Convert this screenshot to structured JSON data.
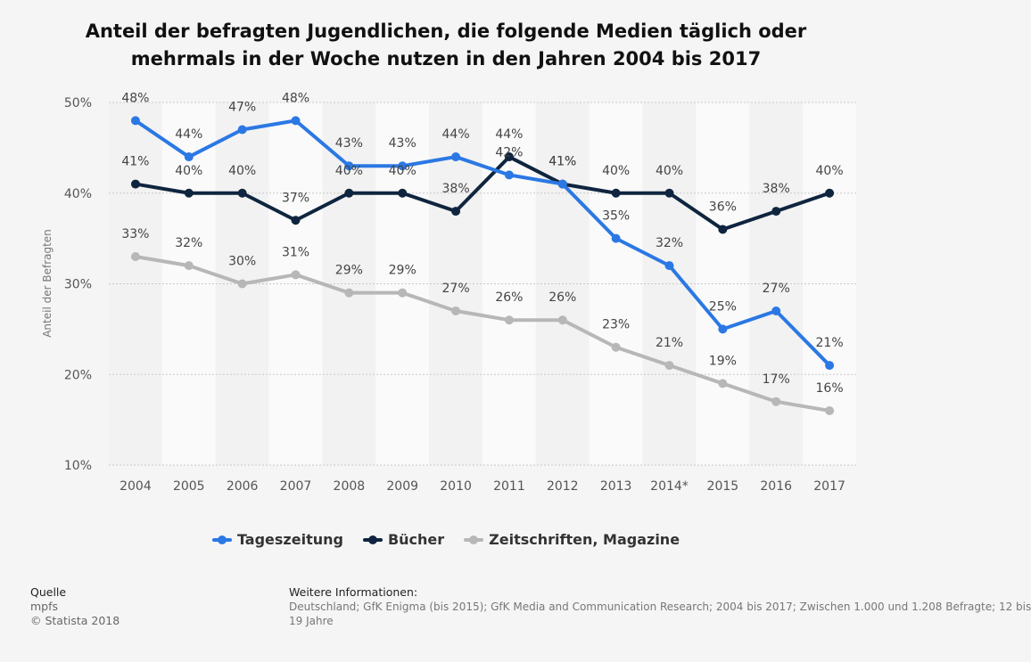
{
  "title_line1": "Anteil der befragten Jugendlichen, die folgende Medien täglich oder",
  "title_line2": "mehrmals in der Woche nutzen in den Jahren 2004 bis 2017",
  "chart_data": {
    "type": "line",
    "title": "Anteil der befragten Jugendlichen, die folgende Medien täglich oder mehrmals in der Woche nutzen in den Jahren 2004 bis 2017",
    "xlabel": "",
    "ylabel": "Anteil der Befragten",
    "ylim": [
      10,
      50
    ],
    "yticks": [
      10,
      20,
      30,
      40,
      50
    ],
    "ytick_labels": [
      "10%",
      "20%",
      "30%",
      "40%",
      "50%"
    ],
    "categories": [
      "2004",
      "2005",
      "2006",
      "2007",
      "2008",
      "2009",
      "2010",
      "2011",
      "2012",
      "2013",
      "2014*",
      "2015",
      "2016",
      "2017"
    ],
    "grid": true,
    "legend_position": "bottom",
    "series": [
      {
        "name": "Tageszeitung",
        "color": "#2b78e4",
        "values": [
          48,
          44,
          47,
          48,
          43,
          43,
          44,
          42,
          41,
          35,
          32,
          25,
          27,
          21
        ]
      },
      {
        "name": "Bücher",
        "color": "#0f253f",
        "values": [
          41,
          40,
          40,
          37,
          40,
          40,
          38,
          44,
          41,
          40,
          40,
          36,
          38,
          40
        ]
      },
      {
        "name": "Zeitschriften, Magazine",
        "color": "#b7b7b7",
        "values": [
          33,
          32,
          30,
          31,
          29,
          29,
          27,
          26,
          26,
          23,
          21,
          19,
          17,
          16
        ]
      }
    ]
  },
  "footer": {
    "source_heading": "Quelle",
    "source_name": "mpfs",
    "copyright": "© Statista 2018",
    "info_heading": "Weitere Informationen:",
    "info_line1": "Deutschland; GfK Enigma (bis 2015); GfK Media and Communication Research; 2004 bis 2017; Zwischen 1.000 und 1.208 Befragte; 12 bis",
    "info_line2": "19 Jahre"
  }
}
